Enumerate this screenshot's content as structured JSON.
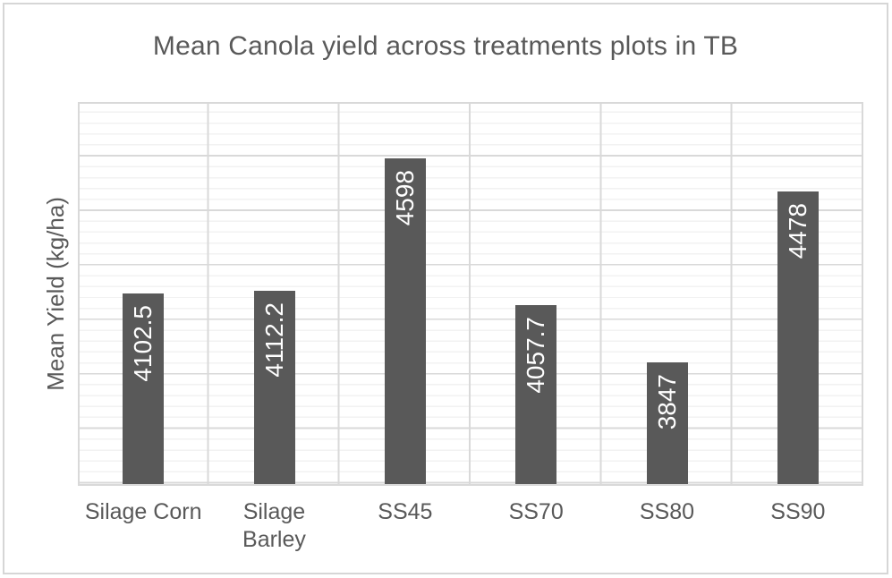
{
  "chart_title": "Mean Canola yield across treatments plots in TB",
  "chart_data": {
    "type": "bar",
    "title": "Mean Canola yield across treatments plots in TB",
    "categories": [
      "Silage Corn",
      "Silage Barley",
      "SS45",
      "SS70",
      "SS80",
      "SS90"
    ],
    "values": [
      4102.5,
      4112.2,
      4598,
      4057.7,
      3847,
      4478
    ],
    "data_labels": [
      "4102.5",
      "4112.2",
      "4598",
      "4057.7",
      "3847",
      "4478"
    ],
    "data_label_style": "inside-end, rotated 90deg (reads bottom-to-top), white",
    "xlabel": "",
    "ylabel": "Mean Yield (kg/ha)",
    "ylim": [
      3400,
      4800
    ],
    "y_major_unit": 200,
    "y_minor_unit": 40,
    "y_tick_labels_visible": false,
    "grid": "horizontal major + minor, vertical major (category separators)",
    "legend_position": "none",
    "bar_color": "#595959",
    "label_color": "#ffffff"
  },
  "colors": {
    "title_text": "#595959",
    "axis_text": "#595959",
    "major_grid": "#d9d9d9",
    "minor_grid": "#f2f2f2",
    "plot_border": "#d9d9d9",
    "chart_border": "#d6d6d6",
    "background": "#ffffff"
  }
}
